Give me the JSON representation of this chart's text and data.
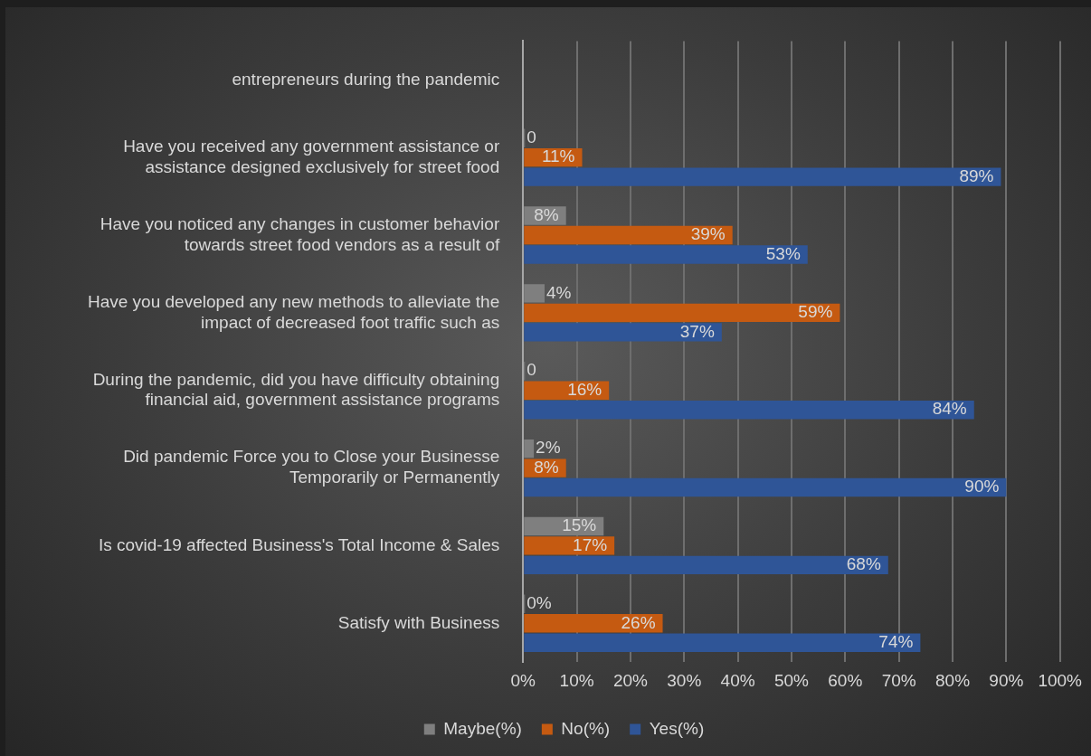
{
  "chart_data": {
    "type": "bar",
    "orientation": "horizontal",
    "categories": [
      "entrepreneurs during the pandemic",
      "Have you received any government assistance or assistance designed exclusively for street food",
      "Have you noticed any changes in customer behavior towards street food vendors as a result of",
      "Have you developed any new methods to alleviate the impact of decreased foot traffic such as",
      "During the pandemic, did you have difficulty obtaining financial aid, government assistance programs",
      "Did pandemic Force you to Close your Businesse Temporarily or Permanently",
      "Is covid-19 affected Business's Total Income & Sales",
      "Satisfy with Business"
    ],
    "series": [
      {
        "name": "Maybe(%)",
        "color": "#7f7f7f",
        "values": [
          null,
          0,
          8,
          4,
          0,
          2,
          15,
          0
        ],
        "value_labels": [
          null,
          "0",
          "8%",
          "4%",
          "0",
          "2%",
          "15%",
          "0%"
        ]
      },
      {
        "name": "No(%)",
        "color": "#c55a11",
        "values": [
          null,
          11,
          39,
          59,
          16,
          8,
          17,
          26
        ],
        "value_labels": [
          null,
          "11%",
          "39%",
          "59%",
          "16%",
          "8%",
          "17%",
          "26%"
        ]
      },
      {
        "name": "Yes(%)",
        "color": "#2f5597",
        "values": [
          null,
          89,
          53,
          37,
          84,
          90,
          68,
          74
        ],
        "value_labels": [
          null,
          "89%",
          "53%",
          "37%",
          "84%",
          "90%",
          "68%",
          "74%"
        ]
      }
    ],
    "xlim": [
      0,
      100
    ],
    "xticks": [
      {
        "value": 0,
        "label": "0%"
      },
      {
        "value": 10,
        "label": "10%"
      },
      {
        "value": 20,
        "label": "20%"
      },
      {
        "value": 30,
        "label": "30%"
      },
      {
        "value": 40,
        "label": "40%"
      },
      {
        "value": 50,
        "label": "50%"
      },
      {
        "value": 60,
        "label": "60%"
      },
      {
        "value": 70,
        "label": "70%"
      },
      {
        "value": 80,
        "label": "80%"
      },
      {
        "value": 90,
        "label": "90%"
      },
      {
        "value": 100,
        "label": "100%"
      }
    ],
    "grid": "x",
    "legend": "bottom"
  }
}
